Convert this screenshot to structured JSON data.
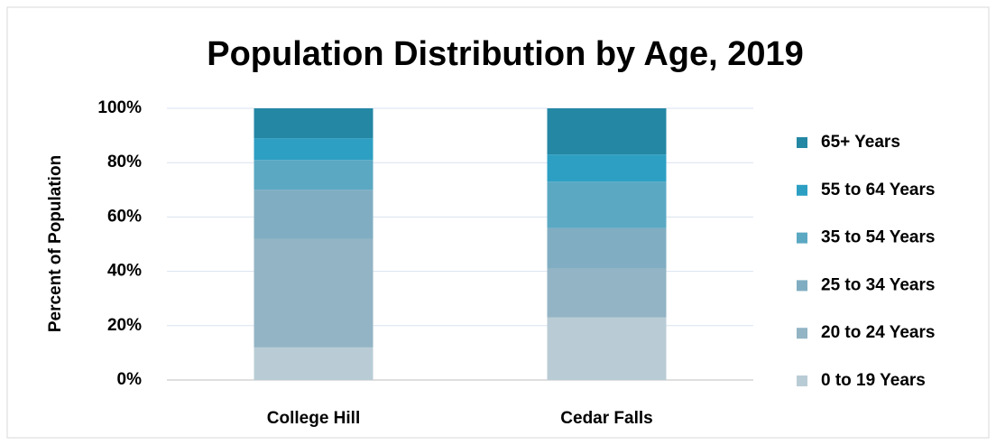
{
  "chart_data": {
    "type": "stacked_bar",
    "title": "Population Distribution by Age, 2019",
    "y_label": "Percent of Population",
    "categories": [
      "College Hill",
      "Cedar Falls"
    ],
    "series": [
      {
        "name": "0 to 19 Years",
        "color": "#b9ccd5",
        "values": [
          12,
          23
        ]
      },
      {
        "name": "20 to 24 Years",
        "color": "#93b4c4",
        "values": [
          40,
          18
        ]
      },
      {
        "name": "25 to 34 Years",
        "color": "#80adc1",
        "values": [
          18,
          15
        ]
      },
      {
        "name": "35 to 54 Years",
        "color": "#5ba8c3",
        "values": [
          11,
          17
        ]
      },
      {
        "name": "55 to 64 Years",
        "color": "#2d9fc3",
        "values": [
          8,
          10
        ]
      },
      {
        "name": "65+ Years",
        "color": "#2487a4",
        "values": [
          11,
          17
        ]
      }
    ],
    "ylim": [
      0,
      100
    ],
    "yticks": [
      {
        "value": 0,
        "label": "0%"
      },
      {
        "value": 20,
        "label": "20%"
      },
      {
        "value": 40,
        "label": "40%"
      },
      {
        "value": 60,
        "label": "60%"
      },
      {
        "value": 80,
        "label": "80%"
      },
      {
        "value": 100,
        "label": "100%"
      }
    ],
    "grid": true,
    "legend": "right"
  }
}
